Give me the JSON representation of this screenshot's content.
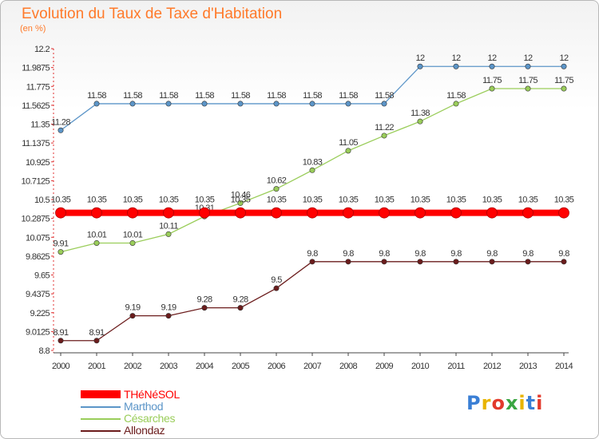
{
  "header": {
    "title": "Evolution du Taux de Taxe d'Habitation",
    "subtitle": "(en %)"
  },
  "logo": {
    "text": "Proxiti",
    "colors": [
      "#3a7fd5",
      "#e8b400",
      "#e23a2c",
      "#3aa641",
      "#e8b400",
      "#3a7fd5",
      "#e23a2c"
    ]
  },
  "chart_data": {
    "type": "line",
    "title": "Evolution du Taux de Taxe d'Habitation",
    "ylabel": "(en %)",
    "xlabel": "",
    "grid": false,
    "legend_position": "bottom-left",
    "x": [
      "2000",
      "2001",
      "2002",
      "2003",
      "2004",
      "2005",
      "2006",
      "2007",
      "2008",
      "2009",
      "2010",
      "2011",
      "2012",
      "2013",
      "2014"
    ],
    "ylim": [
      8.8,
      12.2
    ],
    "yticks": [
      "8.8",
      "9.0125",
      "9.225",
      "9.4375",
      "9.65",
      "9.8625",
      "10.075",
      "10.2875",
      "10.5",
      "10.7125",
      "10.925",
      "11.1375",
      "11.35",
      "11.5625",
      "11.775",
      "11.9875",
      "12.2"
    ],
    "series": [
      {
        "name": "Allondaz",
        "color": "#6b1c1c",
        "values": [
          8.91,
          8.91,
          9.19,
          9.19,
          9.28,
          9.28,
          9.5,
          9.8,
          9.8,
          9.8,
          9.8,
          9.8,
          9.8,
          9.8,
          9.8
        ],
        "labels": [
          "8.91",
          "8.91",
          "9.19",
          "9.19",
          "9.28",
          "9.28",
          "9.5",
          "9.8",
          "9.8",
          "9.8",
          "9.8",
          "9.8",
          "9.8",
          "9.8",
          "9.8"
        ]
      },
      {
        "name": "Marthod",
        "color": "#5c95c8",
        "values": [
          11.28,
          11.58,
          11.58,
          11.58,
          11.58,
          11.58,
          11.58,
          11.58,
          11.58,
          11.58,
          12,
          12,
          12,
          12,
          12
        ],
        "labels": [
          "11.28",
          "11.58",
          "11.58",
          "11.58",
          "11.58",
          "11.58",
          "11.58",
          "11.58",
          "11.58",
          "11.58",
          "12",
          "12",
          "12",
          "12",
          "12"
        ]
      },
      {
        "name": "Césarches",
        "color": "#9acd5a",
        "values": [
          9.91,
          10.01,
          10.01,
          10.11,
          10.31,
          10.46,
          10.62,
          10.83,
          11.05,
          11.22,
          11.38,
          11.58,
          11.75,
          11.75,
          11.75
        ],
        "labels": [
          "9.91",
          "10.01",
          "10.01",
          "10.11",
          "10.31",
          "10.46",
          "10.62",
          "10.83",
          "11.05",
          "11.22",
          "11.38",
          "11.58",
          "11.75",
          "11.75",
          "11.75"
        ]
      },
      {
        "name": "THéNéSOL",
        "color": "#ff0000",
        "values": [
          10.35,
          10.35,
          10.35,
          10.35,
          10.35,
          10.35,
          10.35,
          10.35,
          10.35,
          10.35,
          10.35,
          10.35,
          10.35,
          10.35,
          10.35
        ],
        "labels": [
          "10.35",
          "10.35",
          "10.35",
          "10.35",
          "10.35",
          "10.35",
          "10.35",
          "10.35",
          "10.35",
          "10.35",
          "10.35",
          "10.35",
          "10.35",
          "10.35",
          "10.35"
        ]
      }
    ]
  },
  "legend": [
    {
      "name": "THéNéSOL",
      "color": "#ff0000",
      "text_color": "#ff0000",
      "thick": true
    },
    {
      "name": "Marthod",
      "color": "#5c95c8",
      "text_color": "#5c95c8",
      "thick": false
    },
    {
      "name": "Césarches",
      "color": "#9acd5a",
      "text_color": "#9acd5a",
      "thick": false
    },
    {
      "name": "Allondaz",
      "color": "#6b1c1c",
      "text_color": "#6b1c1c",
      "thick": false
    }
  ]
}
